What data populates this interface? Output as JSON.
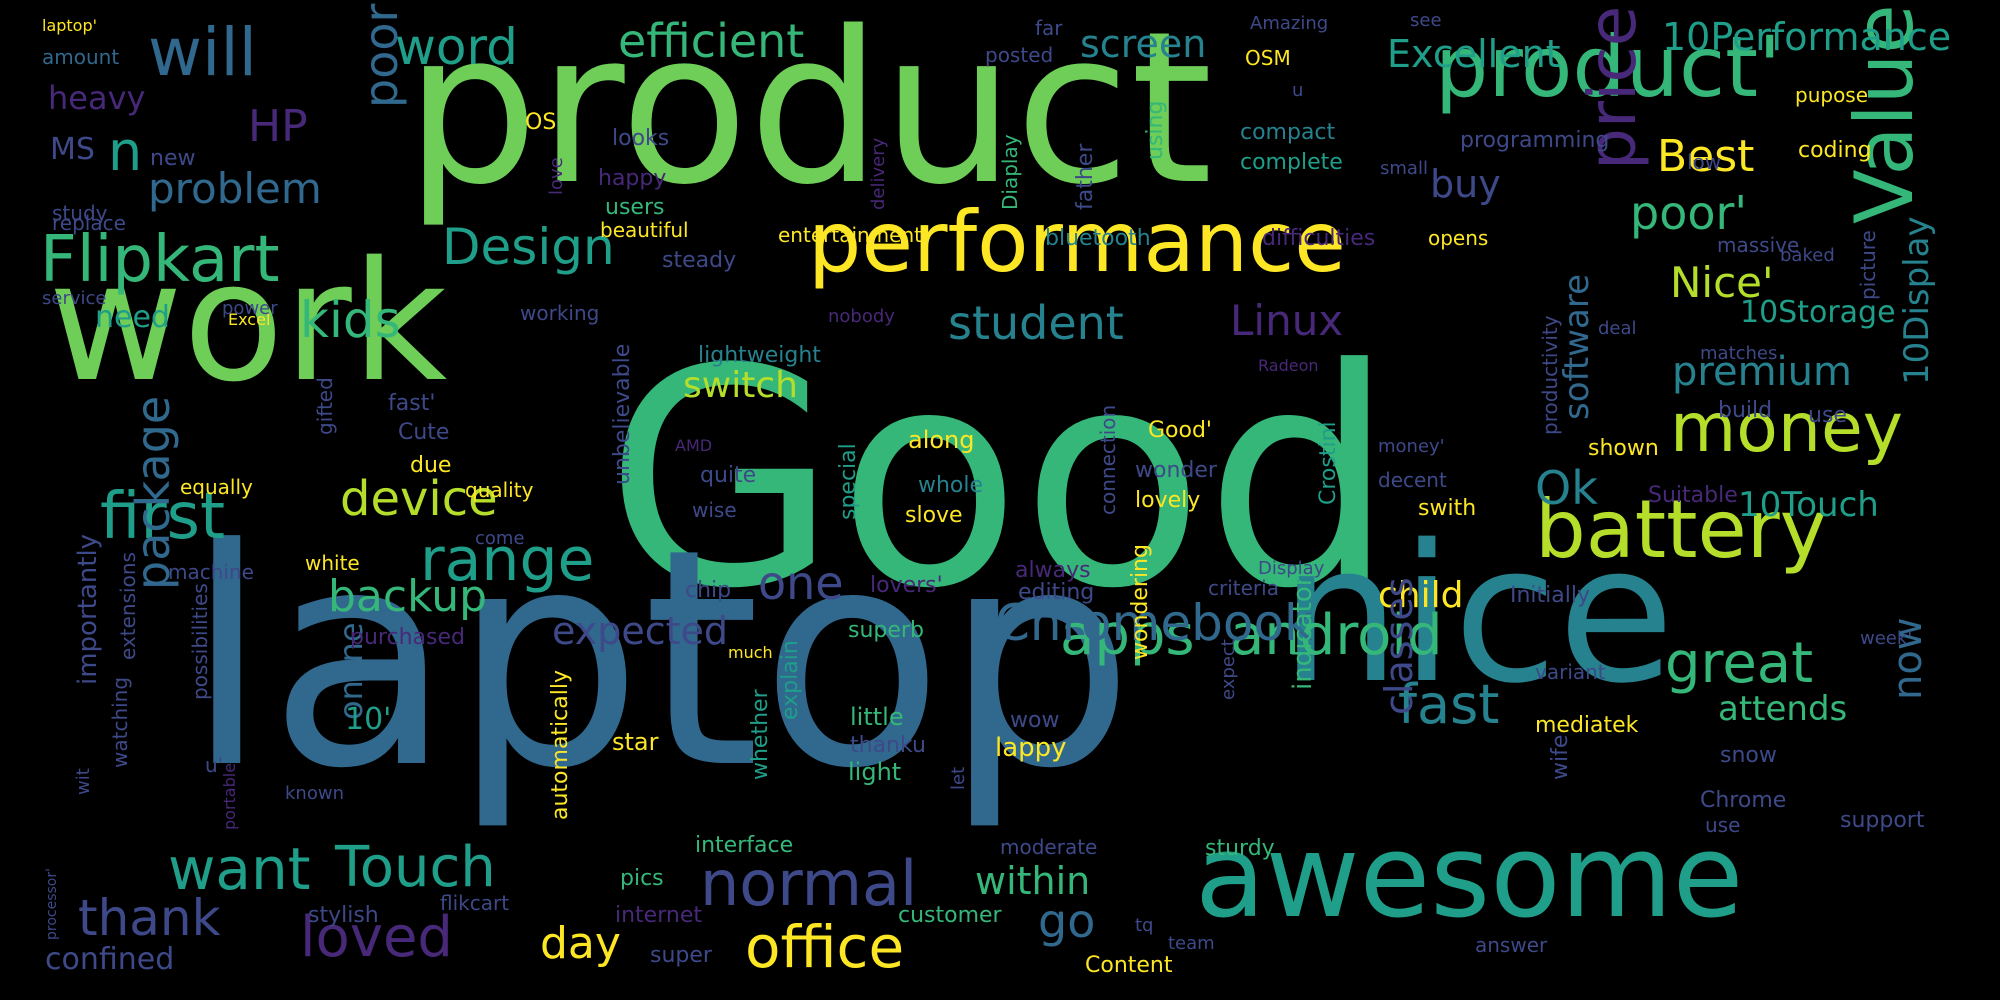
{
  "palette": {
    "background": "#000000",
    "yellow": "#fde725",
    "lime": "#b5de2b",
    "green": "#6ece58",
    "teal_green": "#35b779",
    "teal": "#1f9e89",
    "cyan_blue": "#26828e",
    "blue": "#31688e",
    "indigo": "#3e4989",
    "violet": "#482878",
    "dark_purple": "#440154"
  },
  "words": [
    "Good",
    "laptop",
    "product",
    "work",
    "nice",
    "awesome",
    "performance",
    "product'",
    "Value",
    "battery",
    "price",
    "money",
    "Flipkart",
    "first",
    "range",
    "apps",
    "android",
    "Chromebook",
    "normal",
    "office",
    "great",
    "Design",
    "fast",
    "want",
    "Touch",
    "loved",
    "thank",
    "package",
    "problem",
    "will",
    "word",
    "efficient",
    "screen",
    "Excellent",
    "10Performance",
    "Best",
    "poor'",
    "Nice'",
    "student",
    "Linux",
    "kids",
    "device",
    "backup",
    "switch",
    "premium",
    "Ok",
    "one",
    "expected",
    "go",
    "day",
    "within",
    "child",
    "attends",
    "now",
    "10Display",
    "10Touch",
    "software",
    "10Storage",
    "poor",
    "HP",
    "heavy",
    "n",
    "MS",
    "need",
    "buy",
    "importantly",
    "online",
    "10'",
    "confined",
    "classes",
    "amount",
    "study",
    "replace",
    "service",
    "Excel",
    "equally",
    "machine",
    "white",
    "extensions",
    "possibilities",
    "watching",
    "wit",
    "processor'",
    "u'",
    "stylish",
    "flikcart",
    "known",
    "chip",
    "purchased",
    "much",
    "superb",
    "lovers'",
    "editing",
    "criteria",
    "Initially",
    "variant",
    "week'",
    "mediatek",
    "snow",
    "support",
    "Chrome",
    "use",
    "answer",
    "team",
    "tq",
    "Content",
    "super",
    "internet",
    "customer",
    "moderate",
    "interface",
    "pics",
    "sturdy",
    "wife",
    "let",
    "expect",
    "wondering",
    "indicator",
    "lappy",
    "wow",
    "thanku",
    "light",
    "little",
    "star",
    "explain",
    "whether",
    "automatically",
    "laptop'",
    "far",
    "Amazing",
    "see",
    "posted",
    "OSM",
    "u",
    "pupose",
    "OS",
    "looks",
    "new",
    "compact",
    "complete",
    "programming",
    "coding",
    "small",
    "low",
    "love",
    "happy",
    "users",
    "delivery",
    "father",
    "using",
    "Diaplay",
    "beautiful",
    "entertainment",
    "bluetooth",
    "difficulties",
    "opens",
    "baked",
    "massive",
    "picture",
    "steady",
    "power",
    "nobody",
    "working",
    "lightweight",
    "productivity",
    "deal",
    "matches",
    "Radeon",
    "gifted",
    "fast'",
    "Cute",
    "AMD",
    "unbelievable",
    "Good'",
    "along",
    "money'",
    "build",
    "use",
    "shown",
    "due",
    "quality",
    "wise",
    "quite",
    "special",
    "wonder",
    "whole",
    "lovely",
    "slove",
    "Crostini",
    "decent",
    "Suitable",
    "swith",
    "come",
    "connection",
    "always",
    "Display",
    "portable"
  ]
}
